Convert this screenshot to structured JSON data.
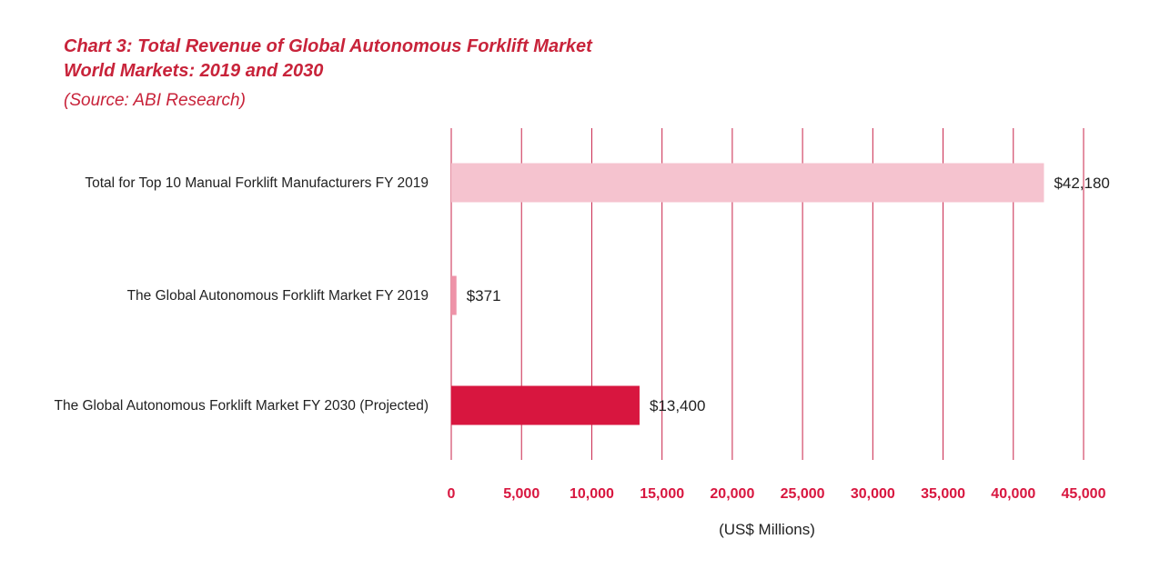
{
  "chart_data": {
    "type": "bar",
    "orientation": "horizontal",
    "title": "Chart 3: Total Revenue of Global Autonomous Forklift Market",
    "subtitle": "World Markets: 2019 and 2030",
    "source": "(Source: ABI Research)",
    "categories": [
      "Total for Top 10 Manual Forklift Manufacturers  FY 2019",
      "The Global Autonomous Forklift Market FY 2019",
      "The Global Autonomous Forklift Market FY 2030 (Projected)"
    ],
    "values": [
      42180,
      371,
      13400
    ],
    "value_labels": [
      "$42,180",
      "$371",
      "$13,400"
    ],
    "bar_colors": [
      "#f5c3cf",
      "#ee93a8",
      "#d8163f"
    ],
    "xlabel": "(US$ Millions)",
    "ylabel": "",
    "xlim": [
      0,
      45000
    ],
    "xticks": [
      0,
      5000,
      10000,
      15000,
      20000,
      25000,
      30000,
      35000,
      40000,
      45000
    ],
    "xtick_labels": [
      "0",
      "5,000",
      "10,000",
      "15,000",
      "20,000",
      "25,000",
      "30,000",
      "35,000",
      "40,000",
      "45,000"
    ],
    "grid": "vertical",
    "gridline_color": "#c8234a",
    "title_color": "#c8233a",
    "tick_label_color": "#d8163f"
  }
}
